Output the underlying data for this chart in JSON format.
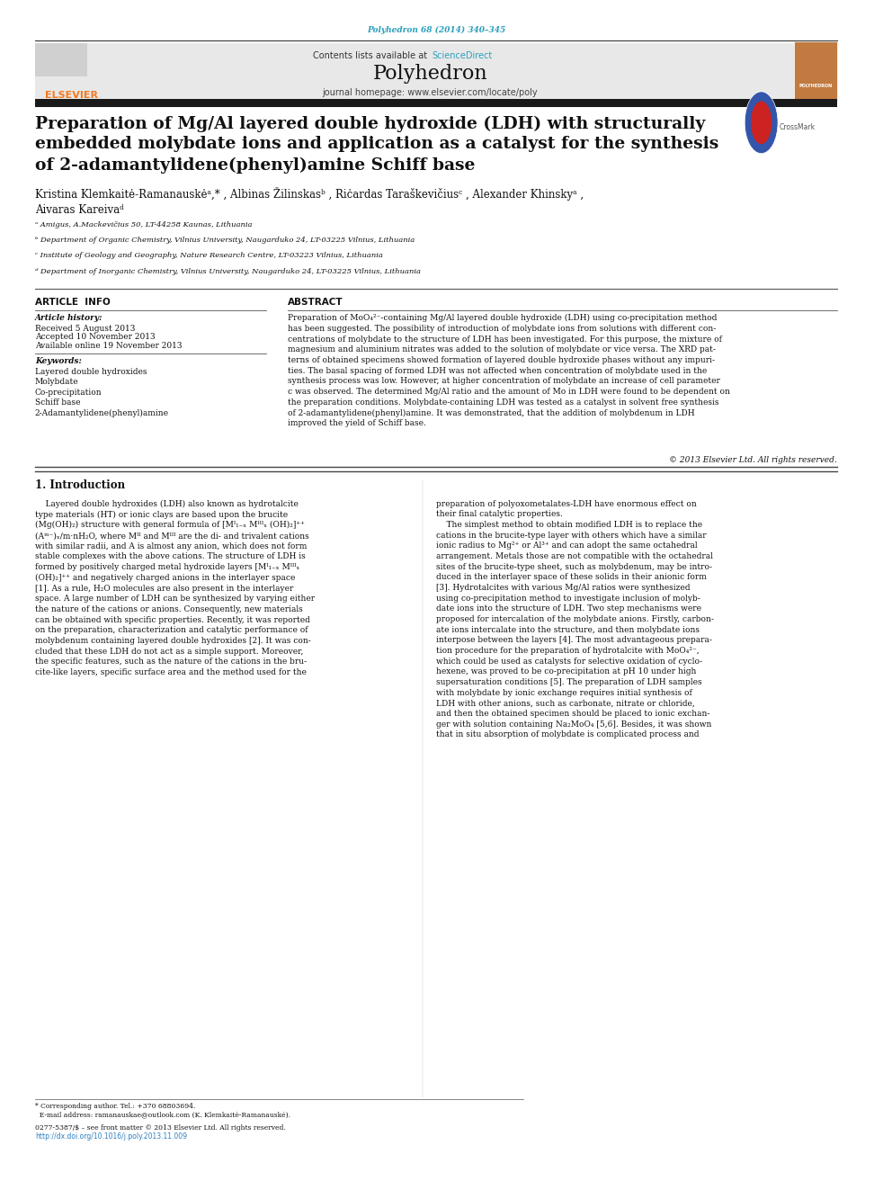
{
  "page_width": 9.92,
  "page_height": 13.23,
  "bg_color": "#ffffff",
  "journal_ref_color": "#2b9fbd",
  "journal_ref": "Polyhedron 68 (2014) 340–345",
  "header_bg": "#e8e8e8",
  "science_direct_color": "#2b9fbd",
  "journal_name": "Polyhedron",
  "journal_homepage": "journal homepage: www.elsevier.com/locate/poly",
  "elsevier_color": "#f47920",
  "affil_a": "ᵃ Amigus, A.Mackevičius 50, LT-44258 Kaunas, Lithuania",
  "affil_b": "ᵇ Department of Organic Chemistry, Vilnius University, Naugarduko 24, LT-03225 Vilnius, Lithuania",
  "affil_c": "ᶜ Institute of Geology and Geography, Nature Research Centre, LT-03223 Vilnius, Lithuania",
  "affil_d": "ᵈ Department of Inorganic Chemistry, Vilnius University, Naugarduko 24, LT-03225 Vilnius, Lithuania",
  "article_info_title": "ARTICLE  INFO",
  "abstract_title": "ABSTRACT",
  "article_history_label": "Article history:",
  "received": "Received 5 August 2013",
  "accepted": "Accepted 10 November 2013",
  "available": "Available online 19 November 2013",
  "keywords_label": "Keywords:",
  "keywords": "Layered double hydroxides\nMolybdate\nCo-precipitation\nSchiff base\n2-Adamantylidene(phenyl)amine",
  "abstract_text": "Preparation of MoO₄²⁻-containing Mg/Al layered double hydroxide (LDH) using co-precipitation method\nhas been suggested. The possibility of introduction of molybdate ions from solutions with different con-\ncentrations of molybdate to the structure of LDH has been investigated. For this purpose, the mixture of\nmagnesium and aluminium nitrates was added to the solution of molybdate or vice versa. The XRD pat-\nterns of obtained specimens showed formation of layered double hydroxide phases without any impuri-\nties. The basal spacing of formed LDH was not affected when concentration of molybdate used in the\nsynthesis process was low. However, at higher concentration of molybdate an increase of cell parameter\nc was observed. The determined Mg/Al ratio and the amount of Mo in LDH were found to be dependent on\nthe preparation conditions. Molybdate-containing LDH was tested as a catalyst in solvent free synthesis\nof 2-adamantylidene(phenyl)amine. It was demonstrated, that the addition of molybdenum in LDH\nimproved the yield of Schiff base.",
  "copyright": "© 2013 Elsevier Ltd. All rights reserved.",
  "intro_title": "1. Introduction",
  "intro_col1": "    Layered double hydroxides (LDH) also known as hydrotalcite\ntype materials (HT) or ionic clays are based upon the brucite\n(Mg(OH)₂) structure with general formula of [Mᴵ₁₋ₓ Mᴵᴵᴵₓ (OH)₂]⁺⁺\n(Aᵐ⁻)ₓ/m·nH₂O, where Mᴵᴵ and Mᴵᴵᴵ are the di- and trivalent cations\nwith similar radii, and A is almost any anion, which does not form\nstable complexes with the above cations. The structure of LDH is\nformed by positively charged metal hydroxide layers [Mᴵ₁₋ₓ Mᴵᴵᴵₓ\n(OH)₂]⁺⁺ and negatively charged anions in the interlayer space\n[1]. As a rule, H₂O molecules are also present in the interlayer\nspace. A large number of LDH can be synthesized by varying either\nthe nature of the cations or anions. Consequently, new materials\ncan be obtained with specific properties. Recently, it was reported\non the preparation, characterization and catalytic performance of\nmolybdenum containing layered double hydroxides [2]. It was con-\ncluded that these LDH do not act as a simple support. Moreover,\nthe specific features, such as the nature of the cations in the bru-\ncite-like layers, specific surface area and the method used for the",
  "intro_col2": "preparation of polyoxometalates-LDH have enormous effect on\ntheir final catalytic properties.\n    The simplest method to obtain modified LDH is to replace the\ncations in the brucite-type layer with others which have a similar\nionic radius to Mg²⁺ or Al³⁺ and can adopt the same octahedral\narrangement. Metals those are not compatible with the octahedral\nsites of the brucite-type sheet, such as molybdenum, may be intro-\nduced in the interlayer space of these solids in their anionic form\n[3]. Hydrotalcites with various Mg/Al ratios were synthesized\nusing co-precipitation method to investigate inclusion of molyb-\ndate ions into the structure of LDH. Two step mechanisms were\nproposed for intercalation of the molybdate anions. Firstly, carbon-\nate ions intercalate into the structure, and then molybdate ions\ninterpose between the layers [4]. The most advantageous prepara-\ntion procedure for the preparation of hydrotalcite with MoO₄²⁻,\nwhich could be used as catalysts for selective oxidation of cyclo-\nhexene, was proved to be co-precipitation at pH 10 under high\nsupersaturation conditions [5]. The preparation of LDH samples\nwith molybdate by ionic exchange requires initial synthesis of\nLDH with other anions, such as carbonate, nitrate or chloride,\nand then the obtained specimen should be placed to ionic exchan-\nger with solution containing Na₂MoO₄ [5,6]. Besides, it was shown\nthat in situ absorption of molybdate is complicated process and",
  "footer_line1": "* Corresponding author. Tel.: +370 68803694.",
  "footer_line2": "  E-mail address: ramanauskae@outlook.com (K. Klemkaitė-Ramanauskė).",
  "footer_line3": "0277-5387/$ – see front matter © 2013 Elsevier Ltd. All rights reserved.",
  "footer_url": "http://dx.doi.org/10.1016/j.poly.2013.11.009"
}
